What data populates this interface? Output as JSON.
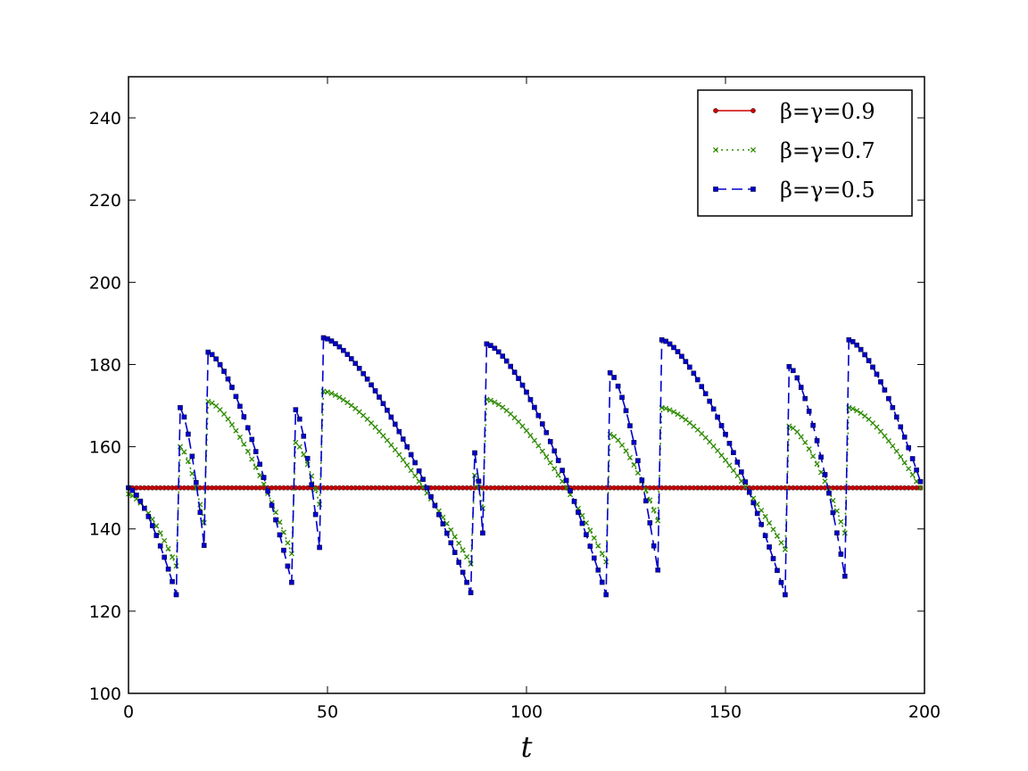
{
  "chart_data": {
    "type": "line",
    "title": "",
    "xlabel": "t",
    "ylabel": "",
    "xlim": [
      0,
      200
    ],
    "ylim": [
      100,
      250
    ],
    "xticks": [
      "0",
      "50",
      "100",
      "150",
      "200"
    ],
    "yticks": [
      "100",
      "120",
      "140",
      "160",
      "180",
      "200",
      "220",
      "240"
    ],
    "grid": false,
    "legend_position": "top-right",
    "t_start": 0,
    "t_end": 199,
    "series": [
      {
        "name": "β=γ=0.9",
        "color": "#cc0000",
        "marker": "circle",
        "line_style": "solid",
        "jumps": [],
        "segments": [
          {
            "start": 0,
            "end": 199,
            "y_start": 150,
            "y_end": 150
          }
        ]
      },
      {
        "name": "β=γ=0.7",
        "color": "#2e8b00",
        "marker": "x",
        "line_style": "dotted",
        "jumps": [
          13,
          20,
          42,
          49,
          87,
          90,
          121,
          134,
          166,
          181
        ],
        "segments": [
          {
            "start": 0,
            "end": 12,
            "y_start": 148.5,
            "y_end": 131
          },
          {
            "start": 13,
            "end": 19,
            "y_start": 160,
            "y_end": 141.5
          },
          {
            "start": 20,
            "end": 41,
            "y_start": 171,
            "y_end": 134
          },
          {
            "start": 42,
            "end": 48,
            "y_start": 161,
            "y_end": 146
          },
          {
            "start": 49,
            "end": 86,
            "y_start": 173.5,
            "y_end": 131.5
          },
          {
            "start": 87,
            "end": 89,
            "y_start": 153,
            "y_end": 145
          },
          {
            "start": 90,
            "end": 120,
            "y_start": 171.5,
            "y_end": 132
          },
          {
            "start": 121,
            "end": 133,
            "y_start": 163,
            "y_end": 142
          },
          {
            "start": 134,
            "end": 165,
            "y_start": 169.5,
            "y_end": 135
          },
          {
            "start": 166,
            "end": 180,
            "y_start": 165,
            "y_end": 139
          },
          {
            "start": 181,
            "end": 199,
            "y_start": 169.5,
            "y_end": 150
          }
        ]
      },
      {
        "name": "β=γ=0.5",
        "color": "#0000cc",
        "marker": "square",
        "line_style": "dashed",
        "jumps": [
          13,
          20,
          42,
          49,
          87,
          90,
          121,
          134,
          166,
          181
        ],
        "segments": [
          {
            "start": 0,
            "end": 12,
            "y_start": 150,
            "y_end": 124
          },
          {
            "start": 13,
            "end": 19,
            "y_start": 169.5,
            "y_end": 136
          },
          {
            "start": 20,
            "end": 41,
            "y_start": 183,
            "y_end": 127
          },
          {
            "start": 42,
            "end": 48,
            "y_start": 169,
            "y_end": 135.5
          },
          {
            "start": 49,
            "end": 86,
            "y_start": 186.5,
            "y_end": 124.5
          },
          {
            "start": 87,
            "end": 89,
            "y_start": 158.5,
            "y_end": 139
          },
          {
            "start": 90,
            "end": 120,
            "y_start": 185,
            "y_end": 124
          },
          {
            "start": 121,
            "end": 133,
            "y_start": 178,
            "y_end": 130
          },
          {
            "start": 134,
            "end": 165,
            "y_start": 186,
            "y_end": 124
          },
          {
            "start": 166,
            "end": 180,
            "y_start": 179.5,
            "y_end": 128.5
          },
          {
            "start": 181,
            "end": 199,
            "y_start": 186,
            "y_end": 151.5
          }
        ]
      }
    ]
  }
}
